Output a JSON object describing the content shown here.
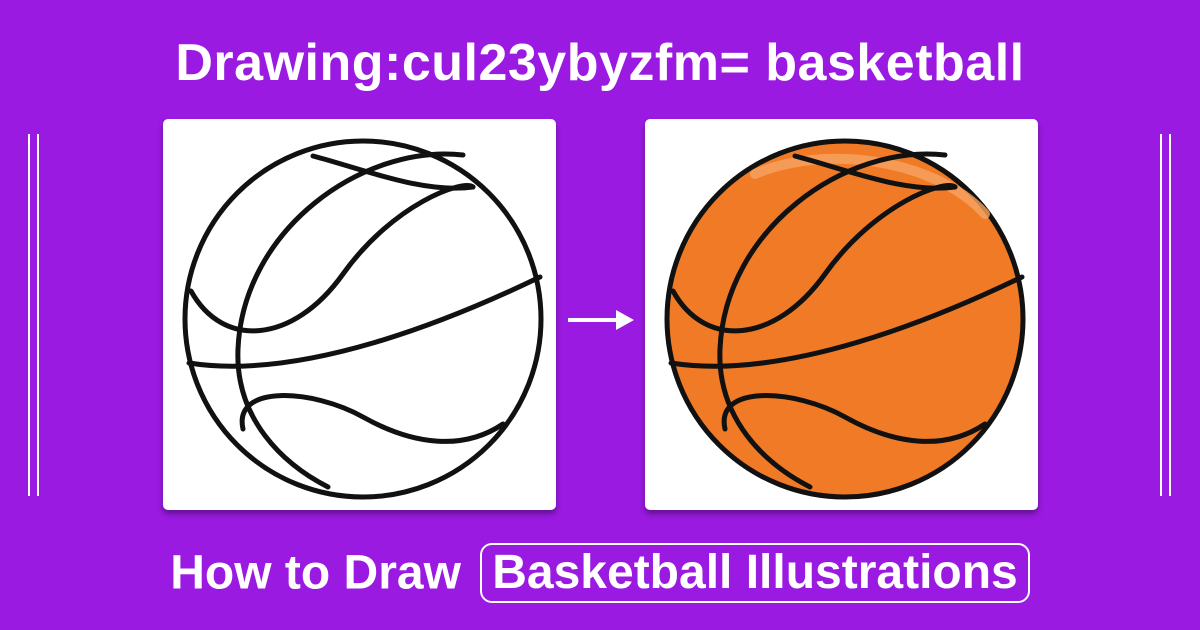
{
  "header": {
    "title": "Drawing:cul23ybyzfm= basketball"
  },
  "illustrations": [
    {
      "kind": "outline",
      "fill": "#ffffff"
    },
    {
      "kind": "colored",
      "fill": "#F07A25"
    }
  ],
  "footer": {
    "prefix": "How to Draw",
    "highlight": "Basketball Illustrations"
  },
  "colors": {
    "background": "#9A1AE1",
    "ball_orange": "#F07A25",
    "line": "#111111",
    "text": "#FFFFFF"
  },
  "icons": {
    "arrow": "right-arrow-icon"
  }
}
